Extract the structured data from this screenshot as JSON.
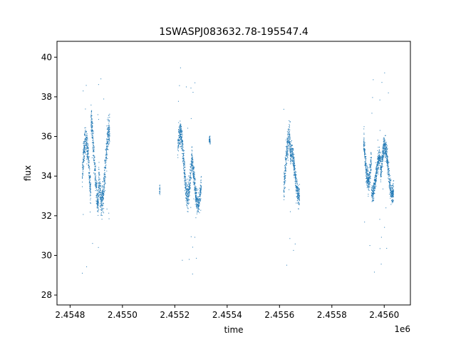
{
  "chart_data": {
    "type": "scatter",
    "title": "1SWASPJ083632.78-195547.4",
    "xlabel": "time",
    "ylabel": "flux",
    "x_offset_label": "1e6",
    "xlim": [
      2454750,
      2456100
    ],
    "ylim": [
      27.5,
      40.8
    ],
    "x_ticks": [
      2454800,
      2455000,
      2455200,
      2455400,
      2455600,
      2455800,
      2456000
    ],
    "x_tick_labels": [
      "2.4548",
      "2.4550",
      "2.4552",
      "2.4554",
      "2.4556",
      "2.4558",
      "2.4560"
    ],
    "y_ticks": [
      28,
      30,
      32,
      34,
      36,
      38,
      40
    ],
    "y_tick_labels": [
      "28",
      "30",
      "32",
      "34",
      "36",
      "38",
      "40"
    ],
    "grid": false,
    "marker_color": "#1f77b4",
    "segments": [
      {
        "x": [
          2454845,
          2454878
        ],
        "center": 34.0,
        "amplitude": 1.8,
        "spread": 0.9
      },
      {
        "x": [
          2454878,
          2454908
        ],
        "center": 34.8,
        "amplitude": 2.0,
        "spread": 0.9
      },
      {
        "x": [
          2454908,
          2454950
        ],
        "center": 34.6,
        "amplitude": 1.8,
        "spread": 1.0
      },
      {
        "x": [
          2455140,
          2455142
        ],
        "center": 33.8,
        "amplitude": 0.6,
        "spread": 0.4
      },
      {
        "x": [
          2455210,
          2455265
        ],
        "center": 34.6,
        "amplitude": 1.6,
        "spread": 0.8
      },
      {
        "x": [
          2455265,
          2455300
        ],
        "center": 33.8,
        "amplitude": 1.2,
        "spread": 0.7
      },
      {
        "x": [
          2455330,
          2455334
        ],
        "center": 36.1,
        "amplitude": 0.3,
        "spread": 0.3
      },
      {
        "x": [
          2455615,
          2455640
        ],
        "center": 34.3,
        "amplitude": 1.6,
        "spread": 0.9
      },
      {
        "x": [
          2455640,
          2455675
        ],
        "center": 34.1,
        "amplitude": 1.1,
        "spread": 0.7
      },
      {
        "x": [
          2455920,
          2455950
        ],
        "center": 35.3,
        "amplitude": 1.5,
        "spread": 0.8
      },
      {
        "x": [
          2455950,
          2455985
        ],
        "center": 34.0,
        "amplitude": 0.9,
        "spread": 0.6
      },
      {
        "x": [
          2455985,
          2456035
        ],
        "center": 34.3,
        "amplitude": 1.2,
        "spread": 0.7
      }
    ]
  }
}
